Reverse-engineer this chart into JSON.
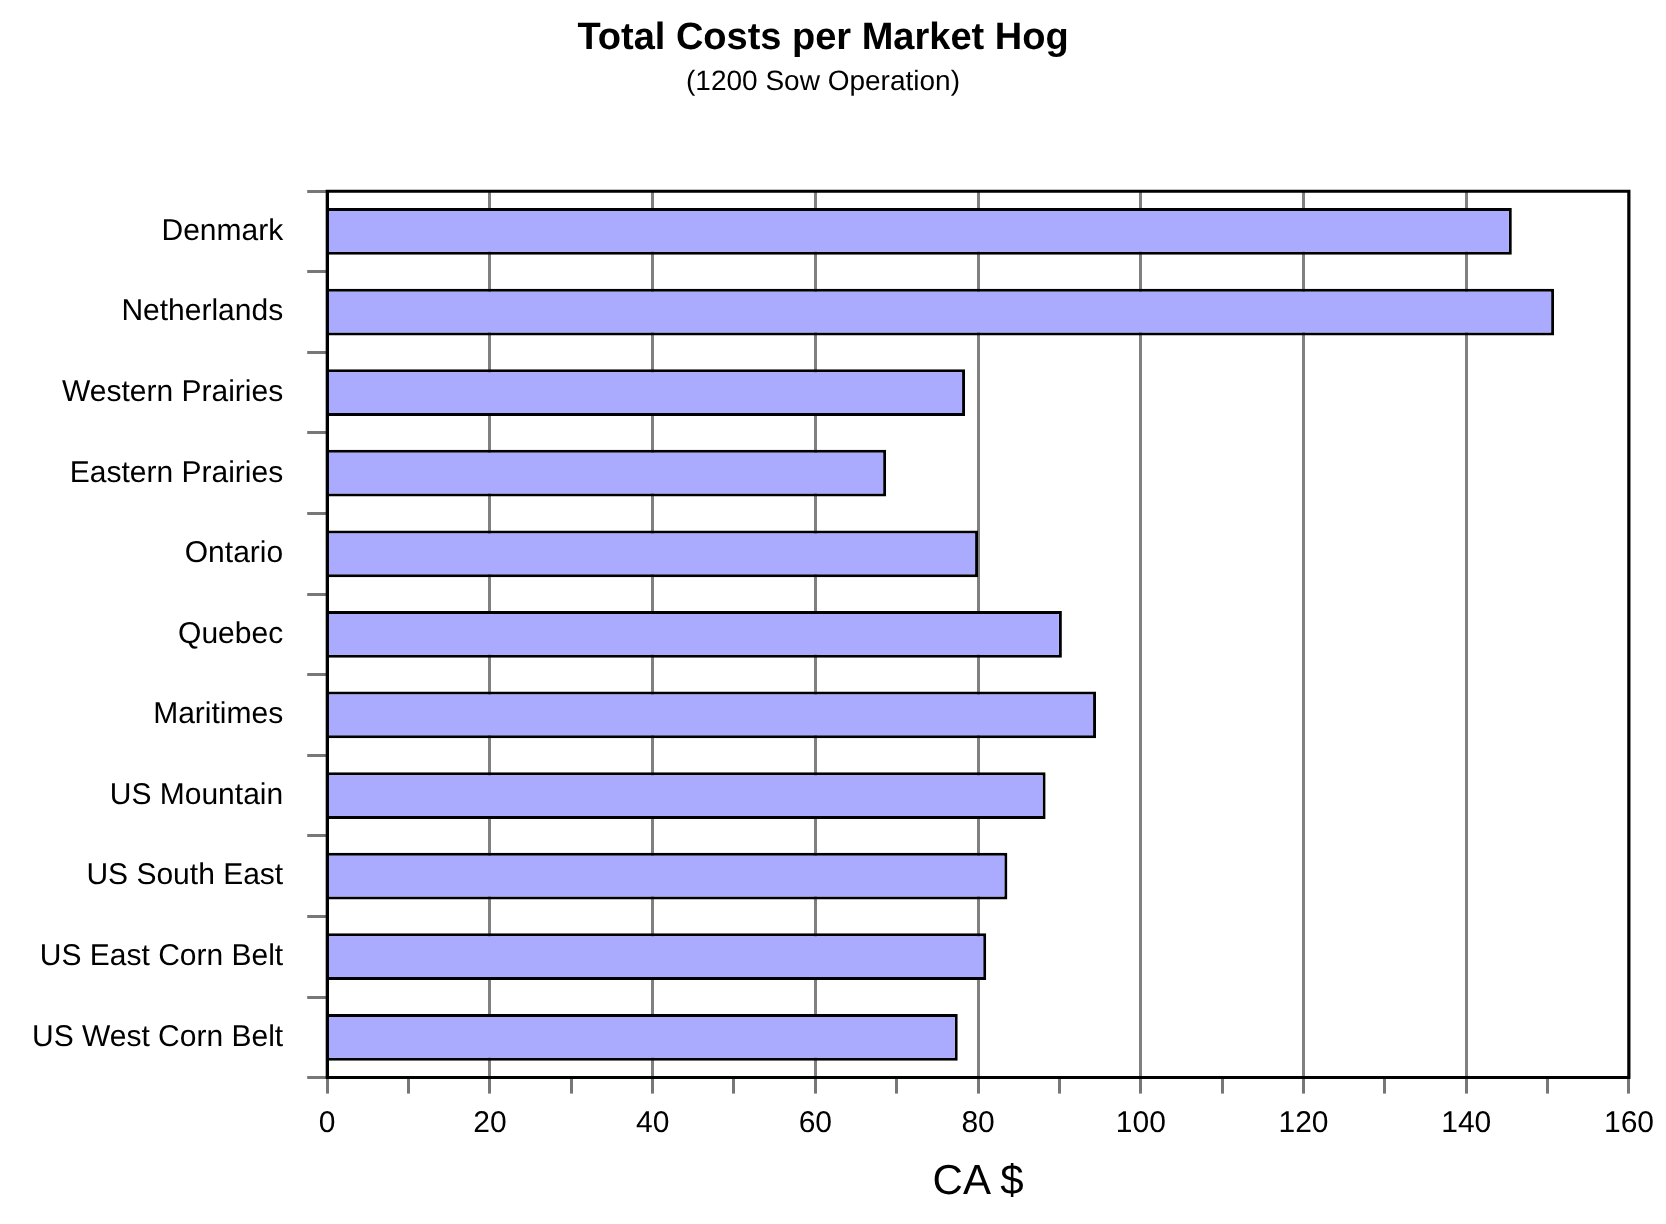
{
  "chart_data": {
    "type": "bar",
    "orientation": "horizontal",
    "title": "Total Costs per Market Hog",
    "subtitle": "(1200 Sow Operation)",
    "xlabel": "CA $",
    "categories": [
      "Denmark",
      "Netherlands",
      "Western Prairies",
      "Eastern Prairies",
      "Ontario",
      "Quebec",
      "Maritimes",
      "US Mountain",
      "US South East",
      "US East Corn Belt",
      "US West Corn Belt"
    ],
    "values": [
      145.6,
      150.8,
      78.4,
      68.7,
      80.0,
      90.3,
      94.5,
      88.3,
      83.6,
      81.0,
      77.5
    ],
    "color": "#aaaaff",
    "xlim": [
      0,
      160
    ],
    "xticks": [
      0,
      {
        "value": 10,
        "label": null
      },
      20,
      {
        "value": 30,
        "label": null
      },
      40,
      {
        "value": 50,
        "label": null
      },
      60,
      {
        "value": 70,
        "label": null
      },
      80,
      {
        "value": 90,
        "label": null
      },
      100,
      {
        "value": 110,
        "label": null
      },
      120,
      {
        "value": 130,
        "label": null
      },
      140,
      {
        "value": 150,
        "label": null
      },
      160
    ],
    "grid": "x",
    "legend": false
  }
}
